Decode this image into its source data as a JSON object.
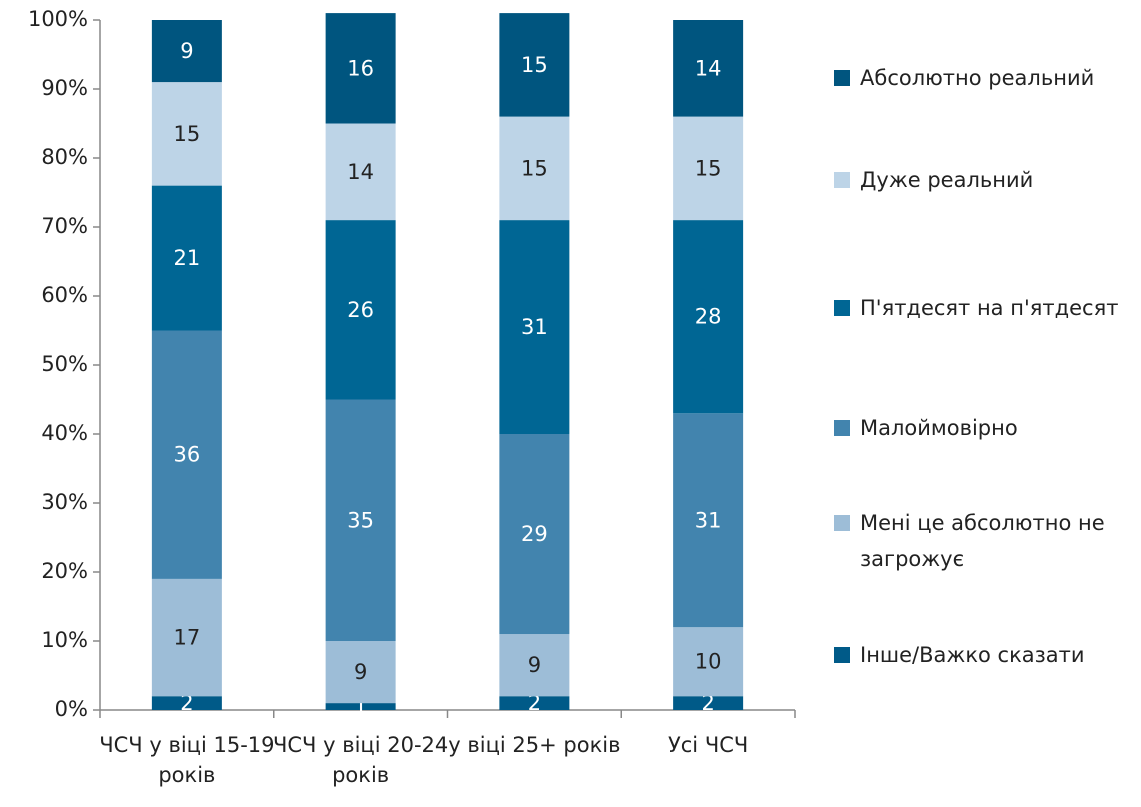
{
  "chart_data": {
    "type": "stacked_bar",
    "categories": [
      "ЧСЧ у віці 15-19 років",
      "ЧСЧ у віці 20-24 років",
      "у віці 25+ років",
      "Усі ЧСЧ"
    ],
    "series": [
      {
        "name": "Інше/Важко сказати",
        "color": "#005a88",
        "values": [
          2,
          1,
          2,
          2
        ]
      },
      {
        "name": "Мені це абсолютно не загрожує",
        "color": "#9dbdd7",
        "values": [
          17,
          9,
          9,
          10
        ]
      },
      {
        "name": "Малоймовірно",
        "color": "#4284ae",
        "values": [
          36,
          35,
          29,
          31
        ]
      },
      {
        "name": "П'ятдесят на п'ятдесят",
        "color": "#006694",
        "values": [
          21,
          26,
          31,
          28
        ]
      },
      {
        "name": "Дуже реальний",
        "color": "#bdd4e7",
        "values": [
          15,
          14,
          15,
          15
        ]
      },
      {
        "name": "Абсолютно реальний",
        "color": "#00557f",
        "values": [
          9,
          16,
          15,
          14
        ]
      }
    ],
    "ylim": [
      0,
      100
    ],
    "yticks": [
      {
        "value": 0,
        "label": "0%"
      },
      {
        "value": 10,
        "label": "10%"
      },
      {
        "value": 20,
        "label": "20%"
      },
      {
        "value": 30,
        "label": "30%"
      },
      {
        "value": 40,
        "label": "40%"
      },
      {
        "value": 50,
        "label": "50%"
      },
      {
        "value": 60,
        "label": "60%"
      },
      {
        "value": 70,
        "label": "70%"
      },
      {
        "value": 80,
        "label": "80%"
      },
      {
        "value": 90,
        "label": "90%"
      },
      {
        "value": 100,
        "label": "100%"
      }
    ],
    "legend": "right"
  }
}
